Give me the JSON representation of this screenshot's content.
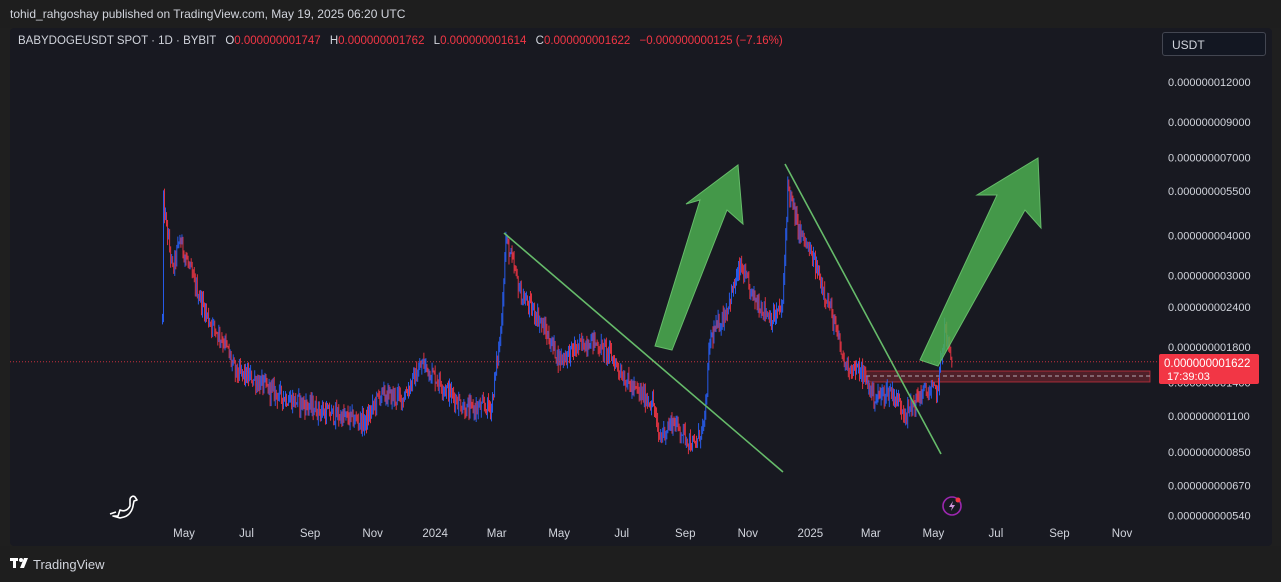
{
  "header": {
    "publisher": "tohid_rahgoshay published on TradingView.com, May 19, 2025 06:20 UTC"
  },
  "legend": {
    "symbol": "BABYDOGEUSDT SPOT · 1D · BYBIT",
    "o_label": "O",
    "o_value": "0.000000001747",
    "h_label": "H",
    "h_value": "0.000000001762",
    "l_label": "L",
    "l_value": "0.000000001614",
    "c_label": "C",
    "c_value": "0.000000001622",
    "change": "−0.000000000125 (−7.16%)"
  },
  "currency_button": "USDT",
  "price_tag": {
    "price": "0.000000001622",
    "countdown": "17:39:03"
  },
  "footer": {
    "brand": "TradingView"
  },
  "colors": {
    "up": "#2962ff",
    "down": "#f23645",
    "trendline": "#66bb6a",
    "arrow": "#4caf50",
    "background": "#181921"
  },
  "icons": {
    "bottom_left": "dinosaur-icon",
    "bottom_right": "lightning-icon"
  },
  "chart_data": {
    "type": "candlestick",
    "scale": "log",
    "x_tick_labels": [
      "May",
      "Jul",
      "Sep",
      "Nov",
      "2024",
      "Mar",
      "May",
      "Jul",
      "Sep",
      "Nov",
      "2025",
      "Mar",
      "May",
      "Jul",
      "Sep",
      "Nov"
    ],
    "x_ticks": [
      "2023-05",
      "2023-07",
      "2023-09",
      "2023-11",
      "2024-01",
      "2024-03",
      "2024-05",
      "2024-07",
      "2024-09",
      "2024-11",
      "2025-01",
      "2025-03",
      "2025-05",
      "2025-07",
      "2025-09",
      "2025-11"
    ],
    "y_tick_labels": [
      "0.000000012000",
      "0.000000009000",
      "0.000000007000",
      "0.000000005500",
      "0.000000004000",
      "0.000000003000",
      "0.000000002400",
      "0.000000001800",
      "0.000000001400",
      "0.000000001100",
      "0.000000000850",
      "0.000000000670",
      "0.000000000540"
    ],
    "y_ticks": [
      1.2e-08,
      9e-09,
      7e-09,
      5.5e-09,
      4e-09,
      3e-09,
      2.4e-09,
      1.8e-09,
      1.4e-09,
      1.1e-09,
      8.5e-10,
      6.7e-10,
      5.4e-10
    ],
    "last_price": 1.622e-09,
    "price_path": [
      [
        "2023-04-10",
        2.2e-09
      ],
      [
        "2023-04-11",
        5e-09
      ],
      [
        "2023-04-20",
        3.1e-09
      ],
      [
        "2023-04-27",
        3.9e-09
      ],
      [
        "2023-05-10",
        2.9e-09
      ],
      [
        "2023-05-25",
        2.2e-09
      ],
      [
        "2023-06-10",
        1.85e-09
      ],
      [
        "2023-06-20",
        1.5e-09
      ],
      [
        "2023-07-05",
        1.45e-09
      ],
      [
        "2023-08-01",
        1.28e-09
      ],
      [
        "2023-08-25",
        1.2e-09
      ],
      [
        "2023-09-15",
        1.13e-09
      ],
      [
        "2023-10-10",
        1.08e-09
      ],
      [
        "2023-10-25",
        1.05e-09
      ],
      [
        "2023-11-08",
        1.28e-09
      ],
      [
        "2023-11-30",
        1.25e-09
      ],
      [
        "2023-12-20",
        1.6e-09
      ],
      [
        "2024-01-10",
        1.35e-09
      ],
      [
        "2024-02-01",
        1.15e-09
      ],
      [
        "2024-02-25",
        1.18e-09
      ],
      [
        "2024-03-05",
        2e-09
      ],
      [
        "2024-03-10",
        3.9e-09
      ],
      [
        "2024-03-25",
        2.6e-09
      ],
      [
        "2024-04-10",
        2.25e-09
      ],
      [
        "2024-05-01",
        1.65e-09
      ],
      [
        "2024-06-01",
        1.9e-09
      ],
      [
        "2024-06-20",
        1.7e-09
      ],
      [
        "2024-07-10",
        1.35e-09
      ],
      [
        "2024-08-01",
        1.2e-09
      ],
      [
        "2024-08-06",
        9.4e-10
      ],
      [
        "2024-08-20",
        1.06e-09
      ],
      [
        "2024-09-10",
        8.8e-10
      ],
      [
        "2024-09-20",
        1.05e-09
      ],
      [
        "2024-09-25",
        1.9e-09
      ],
      [
        "2024-10-10",
        2.3e-09
      ],
      [
        "2024-10-25",
        3.2e-09
      ],
      [
        "2024-11-05",
        2.6e-09
      ],
      [
        "2024-11-25",
        2.2e-09
      ],
      [
        "2024-12-05",
        2.4e-09
      ],
      [
        "2024-12-10",
        5.7e-09
      ],
      [
        "2024-12-20",
        4.2e-09
      ],
      [
        "2025-01-05",
        3.3e-09
      ],
      [
        "2025-01-20",
        2.4e-09
      ],
      [
        "2025-02-03",
        1.6e-09
      ],
      [
        "2025-02-20",
        1.5e-09
      ],
      [
        "2025-03-05",
        1.25e-09
      ],
      [
        "2025-03-20",
        1.32e-09
      ],
      [
        "2025-04-05",
        1.12e-09
      ],
      [
        "2025-04-20",
        1.3e-09
      ],
      [
        "2025-05-05",
        1.32e-09
      ],
      [
        "2025-05-12",
        2.05e-09
      ],
      [
        "2025-05-19",
        1.622e-09
      ]
    ]
  }
}
